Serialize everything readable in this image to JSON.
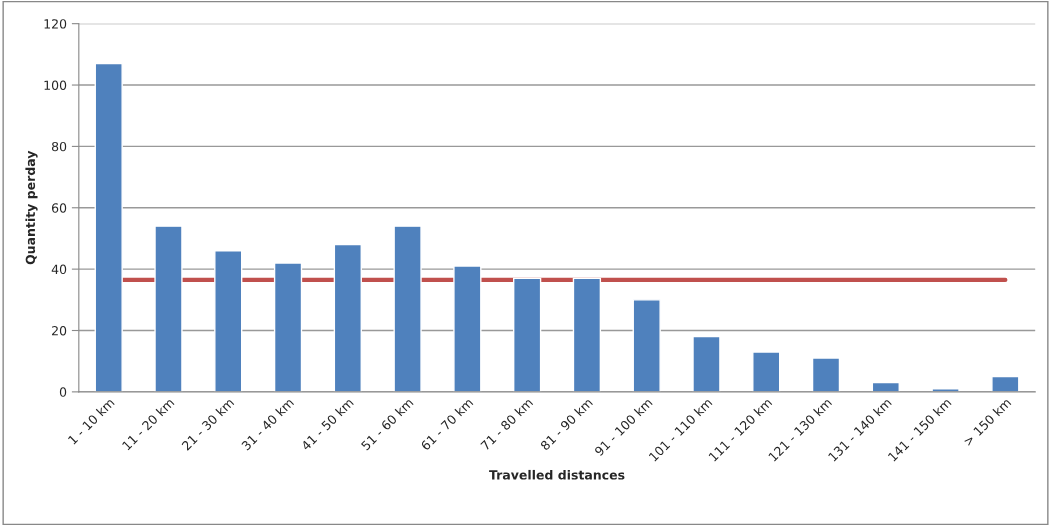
{
  "chart_data": {
    "type": "bar",
    "xlabel": "Travelled distances",
    "ylabel": "Quantity perday",
    "categories": [
      "1 - 10 km",
      "11 - 20 km",
      "21 - 30 km",
      "31 - 40 km",
      "41 - 50 km",
      "51 - 60 km",
      "61 - 70 km",
      "71 - 80 km",
      "81 - 90 km",
      "91 - 100 km",
      "101 - 110 km",
      "111 - 120 km",
      "121 - 130 km",
      "131 - 140 km",
      "141 - 150 km",
      "> 150 km"
    ],
    "series": [
      {
        "color": "#4f81bd",
        "values": [
          107,
          54,
          46,
          42,
          48,
          54,
          41,
          37,
          37,
          30,
          18,
          13,
          11,
          3,
          1,
          5
        ]
      }
    ],
    "ref_lines": [
      {
        "axis": "y",
        "value": 36.5,
        "color": "#c0504d"
      }
    ],
    "ylim": [
      0,
      120
    ],
    "yticks": [
      0,
      20,
      40,
      60,
      80,
      100,
      120
    ],
    "grid": "y",
    "legend": false
  }
}
